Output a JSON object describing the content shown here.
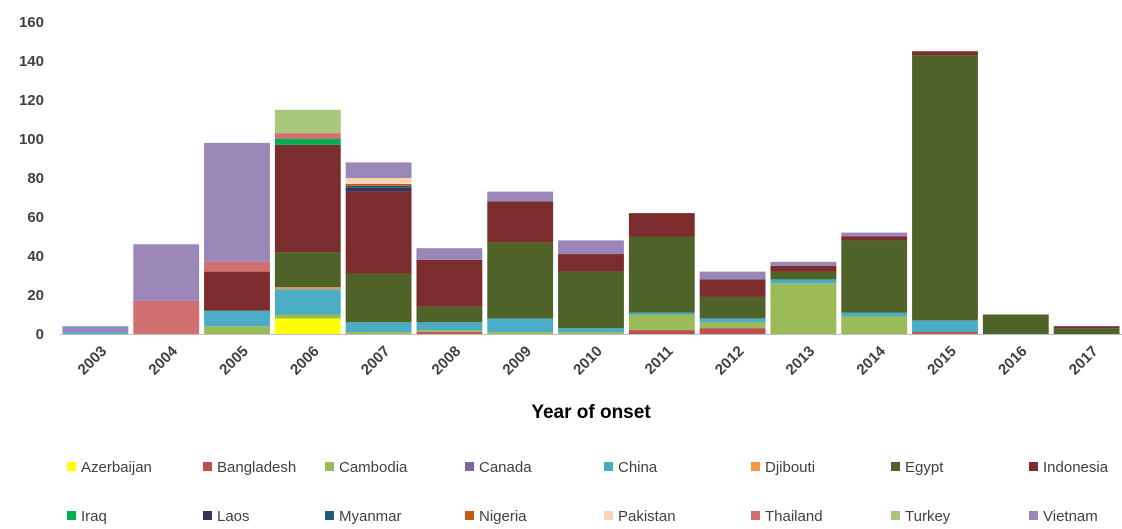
{
  "chart_data": {
    "type": "bar",
    "stacked": true,
    "xlabel": "Year of onset",
    "ylabel": "",
    "ylim": [
      0,
      160
    ],
    "yticks": [
      0,
      20,
      40,
      60,
      80,
      100,
      120,
      140,
      160
    ],
    "grid": false,
    "legend_position": "bottom",
    "categories": [
      "2003",
      "2004",
      "2005",
      "2006",
      "2007",
      "2008",
      "2009",
      "2010",
      "2011",
      "2012",
      "2013",
      "2014",
      "2015",
      "2016",
      "2017"
    ],
    "series": [
      {
        "name": "Azerbaijan",
        "color": "#FFFF00",
        "values": [
          0,
          0,
          0,
          8,
          0,
          0,
          0,
          0,
          0,
          0,
          0,
          0,
          0,
          0,
          0
        ]
      },
      {
        "name": "Bangladesh",
        "color": "#C0504D",
        "values": [
          0,
          0,
          0,
          0,
          0,
          1,
          0,
          0,
          2,
          3,
          0,
          0,
          1,
          0,
          0
        ]
      },
      {
        "name": "Cambodia",
        "color": "#9BBB59",
        "values": [
          0,
          0,
          4,
          2,
          1,
          1,
          1,
          1,
          8,
          3,
          26,
          9,
          0,
          0,
          0
        ]
      },
      {
        "name": "Canada",
        "color": "#8064A2",
        "values": [
          0,
          0,
          0,
          0,
          0,
          0,
          0,
          0,
          0,
          0,
          0,
          0,
          0,
          0,
          0
        ]
      },
      {
        "name": "China",
        "color": "#4BACC6",
        "values": [
          1,
          0,
          8,
          13,
          5,
          4,
          7,
          2,
          1,
          2,
          2,
          2,
          6,
          0,
          0
        ]
      },
      {
        "name": "Djibouti",
        "color": "#F79646",
        "values": [
          0,
          0,
          0,
          1,
          0,
          0,
          0,
          0,
          0,
          0,
          0,
          0,
          0,
          0,
          0
        ]
      },
      {
        "name": "Egypt",
        "color": "#4F6228",
        "values": [
          0,
          0,
          0,
          18,
          25,
          8,
          39,
          29,
          39,
          11,
          4,
          37,
          136,
          10,
          3
        ]
      },
      {
        "name": "Indonesia",
        "color": "#7B2C2C",
        "values": [
          0,
          0,
          20,
          55,
          42,
          24,
          21,
          9,
          12,
          9,
          3,
          2,
          2,
          0,
          1
        ]
      },
      {
        "name": "Iraq",
        "color": "#00B050",
        "values": [
          0,
          0,
          0,
          3,
          0,
          0,
          0,
          0,
          0,
          0,
          0,
          0,
          0,
          0,
          0
        ]
      },
      {
        "name": "Laos",
        "color": "#403152",
        "values": [
          0,
          0,
          0,
          0,
          2,
          0,
          0,
          0,
          0,
          0,
          0,
          0,
          0,
          0,
          0
        ]
      },
      {
        "name": "Myanmar",
        "color": "#1F5C7A",
        "values": [
          0,
          0,
          0,
          0,
          1,
          0,
          0,
          0,
          0,
          0,
          0,
          0,
          0,
          0,
          0
        ]
      },
      {
        "name": "Nigeria",
        "color": "#C55A11",
        "values": [
          0,
          0,
          0,
          0,
          1,
          0,
          0,
          0,
          0,
          0,
          0,
          0,
          0,
          0,
          0
        ]
      },
      {
        "name": "Pakistan",
        "color": "#FBD5B5",
        "values": [
          0,
          0,
          0,
          0,
          3,
          0,
          0,
          0,
          0,
          0,
          0,
          0,
          0,
          0,
          0
        ]
      },
      {
        "name": "Thailand",
        "color": "#D07070",
        "values": [
          0,
          17,
          5,
          3,
          0,
          0,
          0,
          0,
          0,
          0,
          0,
          0,
          0,
          0,
          0
        ]
      },
      {
        "name": "Turkey",
        "color": "#A9C77A",
        "values": [
          0,
          0,
          0,
          12,
          0,
          0,
          0,
          0,
          0,
          0,
          0,
          0,
          0,
          0,
          0
        ]
      },
      {
        "name": "Vietnam",
        "color": "#9B86B8",
        "values": [
          3,
          29,
          61,
          0,
          8,
          6,
          5,
          7,
          0,
          4,
          2,
          2,
          0,
          0,
          0
        ]
      }
    ]
  }
}
